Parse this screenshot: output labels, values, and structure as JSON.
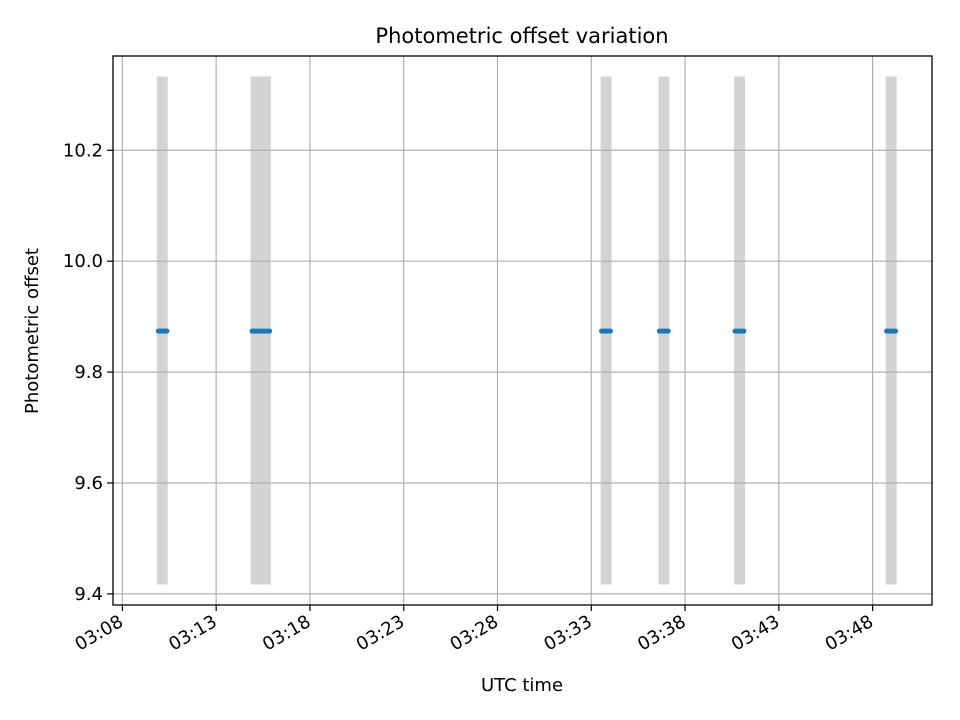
{
  "chart_data": {
    "type": "scatter",
    "title": "Photometric offset variation",
    "xlabel": "UTC time",
    "ylabel": "Photometric offset",
    "x_unit": "HH:MM (UTC)",
    "xlim": [
      "03:07:30",
      "03:51:10"
    ],
    "ylim": [
      9.38,
      10.37
    ],
    "x_ticks": [
      "03:08",
      "03:13",
      "03:18",
      "03:23",
      "03:28",
      "03:33",
      "03:38",
      "03:43",
      "03:48"
    ],
    "y_ticks": [
      9.4,
      9.6,
      9.8,
      10.0,
      10.2
    ],
    "y_tick_labels": [
      "9.4",
      "9.6",
      "9.8",
      "10.0",
      "10.2"
    ],
    "grid": true,
    "exposure_bands": {
      "color": "#d3d3d3",
      "y_range": [
        9.417,
        10.333
      ],
      "intervals": [
        [
          "03:09:50",
          "03:10:25"
        ],
        [
          "03:14:50",
          "03:15:55"
        ],
        [
          "03:33:30",
          "03:34:05"
        ],
        [
          "03:36:35",
          "03:37:10"
        ],
        [
          "03:40:37",
          "03:41:12"
        ],
        [
          "03:48:42",
          "03:49:17"
        ]
      ]
    },
    "series": [
      {
        "color": "#1f77b4",
        "points": [
          {
            "x": "03:09:55",
            "y": 9.874
          },
          {
            "x": "03:10:02",
            "y": 9.874
          },
          {
            "x": "03:10:09",
            "y": 9.874
          },
          {
            "x": "03:10:16",
            "y": 9.874
          },
          {
            "x": "03:10:22",
            "y": 9.874
          },
          {
            "x": "03:14:55",
            "y": 9.874
          },
          {
            "x": "03:15:02",
            "y": 9.874
          },
          {
            "x": "03:15:09",
            "y": 9.874
          },
          {
            "x": "03:15:16",
            "y": 9.874
          },
          {
            "x": "03:15:23",
            "y": 9.874
          },
          {
            "x": "03:15:30",
            "y": 9.874
          },
          {
            "x": "03:15:37",
            "y": 9.874
          },
          {
            "x": "03:15:44",
            "y": 9.874
          },
          {
            "x": "03:15:51",
            "y": 9.874
          },
          {
            "x": "03:33:33",
            "y": 9.874
          },
          {
            "x": "03:33:40",
            "y": 9.874
          },
          {
            "x": "03:33:47",
            "y": 9.874
          },
          {
            "x": "03:33:54",
            "y": 9.874
          },
          {
            "x": "03:34:01",
            "y": 9.874
          },
          {
            "x": "03:36:38",
            "y": 9.874
          },
          {
            "x": "03:36:45",
            "y": 9.874
          },
          {
            "x": "03:36:52",
            "y": 9.874
          },
          {
            "x": "03:36:59",
            "y": 9.874
          },
          {
            "x": "03:37:06",
            "y": 9.874
          },
          {
            "x": "03:40:40",
            "y": 9.874
          },
          {
            "x": "03:40:47",
            "y": 9.874
          },
          {
            "x": "03:40:54",
            "y": 9.874
          },
          {
            "x": "03:41:01",
            "y": 9.874
          },
          {
            "x": "03:41:08",
            "y": 9.874
          },
          {
            "x": "03:48:45",
            "y": 9.874
          },
          {
            "x": "03:48:52",
            "y": 9.874
          },
          {
            "x": "03:48:59",
            "y": 9.874
          },
          {
            "x": "03:49:06",
            "y": 9.874
          },
          {
            "x": "03:49:13",
            "y": 9.874
          }
        ]
      }
    ]
  }
}
